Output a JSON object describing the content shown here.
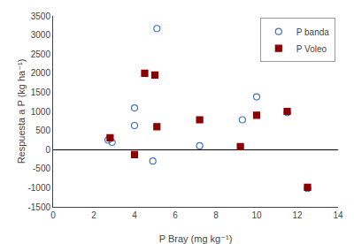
{
  "chart_data": {
    "type": "scatter",
    "xlabel": "P Bray (mg kg⁻¹)",
    "ylabel": "Respuesta a P (kg ha⁻¹)",
    "xlim": [
      0,
      14
    ],
    "ylim": [
      -1500,
      3500
    ],
    "xticks": [
      0,
      2,
      4,
      6,
      8,
      10,
      12,
      14
    ],
    "yticks": [
      -1500,
      -1000,
      -500,
      0,
      500,
      1000,
      1500,
      2000,
      2500,
      3000,
      3500
    ],
    "grid": false,
    "legend": "upper right",
    "series": [
      {
        "name": "P banda",
        "color": "#4472c4",
        "marker": "circle-open",
        "x": [
          2.7,
          2.9,
          4.0,
          4.0,
          4.9,
          5.1,
          7.2,
          9.3,
          10.0,
          11.5,
          12.5
        ],
        "values": [
          250,
          190,
          630,
          1090,
          -300,
          3170,
          100,
          780,
          1380,
          970,
          -1020
        ]
      },
      {
        "name": "P Voleo",
        "color": "#8b0000",
        "marker": "square",
        "x": [
          2.8,
          4.0,
          4.5,
          5.0,
          5.1,
          7.2,
          9.2,
          10.0,
          11.5,
          12.5
        ],
        "values": [
          310,
          -130,
          2000,
          1950,
          600,
          780,
          75,
          900,
          1000,
          -990
        ]
      }
    ]
  }
}
